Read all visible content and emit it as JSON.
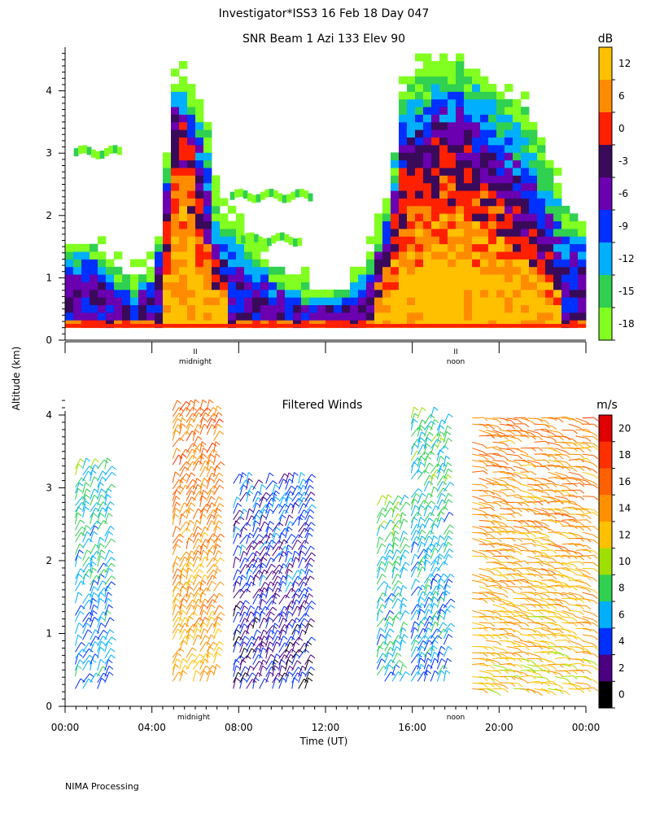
{
  "header": {
    "title": "Investigator*ISS3  16 Feb 18 Day 047"
  },
  "footer": {
    "processing": "NIMA Processing"
  },
  "shared_axes": {
    "ylabel": "Altitude (km)",
    "xlabel": "Time (UT)",
    "x_tick_labels": [
      "00:00",
      "04:00",
      "08:00",
      "12:00",
      "16:00",
      "20:00",
      "00:00"
    ],
    "midnight_label": "midnight",
    "noon_label": "noon",
    "midnight_marker": "II",
    "noon_marker": "II"
  },
  "chart_data": [
    {
      "type": "heatmap",
      "title": "SNR Beam 1 Azi 133 Elev 90",
      "xlabel": "Time (UT)",
      "ylabel": "Altitude (km)",
      "x_range_hours": [
        0,
        24
      ],
      "ylim": [
        0,
        4.7
      ],
      "y_ticks": [
        0,
        1,
        2,
        3,
        4
      ],
      "colorbar": {
        "unit": "dB",
        "tick_labels": [
          "12",
          "6",
          "0",
          "-3",
          "-6",
          "-9",
          "-12",
          "-15",
          "-18"
        ],
        "colors": [
          "#ffc000",
          "#ff8c00",
          "#ff2000",
          "#3a0a5a",
          "#6a00b0",
          "#0030ff",
          "#00b0ff",
          "#30d050",
          "#80ff20"
        ]
      },
      "columns": [
        {
          "t": 0.0,
          "top": 1.5,
          "core": 0.9
        },
        {
          "t": 1.0,
          "top": 1.6,
          "core": 1.0
        },
        {
          "t": 2.0,
          "top": 1.3,
          "core": 0.7
        },
        {
          "t": 3.0,
          "top": 1.0,
          "core": 0.5
        },
        {
          "t": 4.0,
          "top": 1.2,
          "core": 0.6
        },
        {
          "t": 4.6,
          "top": 2.2,
          "core": 1.3
        },
        {
          "t": 4.8,
          "top": 4.0,
          "core": 3.3
        },
        {
          "t": 5.2,
          "top": 4.2,
          "core": 3.5
        },
        {
          "t": 5.6,
          "top": 4.3,
          "core": 3.4
        },
        {
          "t": 6.0,
          "top": 4.0,
          "core": 3.1
        },
        {
          "t": 6.5,
          "top": 3.5,
          "core": 2.0
        },
        {
          "t": 7.0,
          "top": 2.2,
          "core": 1.2
        },
        {
          "t": 8.0,
          "top": 1.8,
          "core": 0.8
        },
        {
          "t": 9.0,
          "top": 1.4,
          "core": 0.6
        },
        {
          "t": 10.0,
          "top": 1.1,
          "core": 0.5
        },
        {
          "t": 11.0,
          "top": 0.9,
          "core": 0.45
        },
        {
          "t": 12.0,
          "top": 0.8,
          "core": 0.45
        },
        {
          "t": 13.0,
          "top": 0.8,
          "core": 0.45
        },
        {
          "t": 14.0,
          "top": 1.4,
          "core": 0.7
        },
        {
          "t": 15.0,
          "top": 2.5,
          "core": 1.6
        },
        {
          "t": 15.5,
          "top": 4.0,
          "core": 2.8
        },
        {
          "t": 16.0,
          "top": 4.3,
          "core": 3.0
        },
        {
          "t": 17.0,
          "top": 4.5,
          "core": 3.2
        },
        {
          "t": 18.0,
          "top": 4.5,
          "core": 3.3
        },
        {
          "t": 19.0,
          "top": 4.3,
          "core": 3.0
        },
        {
          "t": 20.0,
          "top": 4.0,
          "core": 2.6
        },
        {
          "t": 21.0,
          "top": 3.8,
          "core": 2.2
        },
        {
          "t": 22.0,
          "top": 3.2,
          "core": 1.6
        },
        {
          "t": 23.0,
          "top": 2.2,
          "core": 1.0
        },
        {
          "t": 24.0,
          "top": 1.9,
          "core": 0.9
        }
      ],
      "aloft_layers": [
        {
          "t0": 0.3,
          "t1": 2.5,
          "alt": 3.0
        },
        {
          "t0": 7.5,
          "t1": 11.3,
          "alt": 2.3
        },
        {
          "t0": 8.0,
          "t1": 10.8,
          "alt": 1.6
        }
      ]
    },
    {
      "type": "scatter",
      "title": "Filtered Winds",
      "xlabel": "Time (UT)",
      "ylabel": "Altitude (km)",
      "x_range_hours": [
        0,
        24
      ],
      "ylim": [
        0,
        4.2
      ],
      "y_ticks": [
        0,
        1,
        2,
        3,
        4
      ],
      "colorbar": {
        "unit": "m/s",
        "tick_labels": [
          "20",
          "18",
          "16",
          "14",
          "12",
          "10",
          "8",
          "6",
          "4",
          "2",
          "0"
        ],
        "colors": [
          "#e00000",
          "#ff3000",
          "#ff6000",
          "#ff9000",
          "#ffc000",
          "#a0e000",
          "#30d050",
          "#00b0ff",
          "#0030ff",
          "#4a0080",
          "#000000"
        ]
      },
      "wind_groups": [
        {
          "t0": 0.3,
          "t1": 2.0,
          "z0": 0.2,
          "z1": 3.3,
          "speed": 5
        },
        {
          "t0": 4.8,
          "t1": 7.0,
          "z0": 0.3,
          "z1": 4.1,
          "speed": 13
        },
        {
          "t0": 7.6,
          "t1": 11.2,
          "z0": 0.2,
          "z1": 3.1,
          "speed": 2
        },
        {
          "t0": 14.2,
          "t1": 15.6,
          "z0": 0.3,
          "z1": 2.8,
          "speed": 6
        },
        {
          "t0": 15.8,
          "t1": 17.6,
          "z0": 0.3,
          "z1": 4.0,
          "speed": 5
        },
        {
          "t0": 18.6,
          "t1": 24.0,
          "z0": 0.2,
          "z1": 4.0,
          "speed": 12
        }
      ]
    }
  ]
}
